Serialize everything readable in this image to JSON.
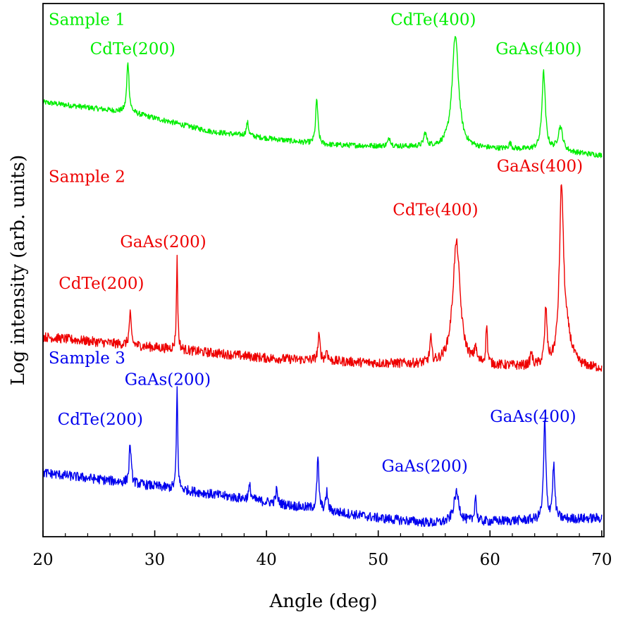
{
  "chart_data": {
    "type": "line",
    "title": "",
    "xlabel": "Angle (deg)",
    "ylabel": "Log intensity (arb. units)",
    "xlim": [
      20,
      70.2
    ],
    "ylim": [
      0,
      10
    ],
    "y_ticks_labeled": false,
    "x_ticks": [
      20,
      30,
      40,
      50,
      60,
      70
    ],
    "x_tick_labels": [
      "20",
      "30",
      "40",
      "50",
      "60",
      "70"
    ],
    "grid": false,
    "legend": "none",
    "series": [
      {
        "name": "Sample 1",
        "color": "#00ee00",
        "baseline": [
          [
            20,
            8.15
          ],
          [
            28,
            7.95
          ],
          [
            35,
            7.6
          ],
          [
            45,
            7.35
          ],
          [
            55,
            7.3
          ],
          [
            65,
            7.25
          ],
          [
            70,
            7.15
          ]
        ],
        "noise": 0.05,
        "peaks": [
          {
            "x": 27.6,
            "h": 0.95,
            "w": 0.12
          },
          {
            "x": 38.3,
            "h": 0.25,
            "w": 0.12
          },
          {
            "x": 44.5,
            "h": 0.85,
            "w": 0.12
          },
          {
            "x": 51.0,
            "h": 0.15,
            "w": 0.15
          },
          {
            "x": 54.2,
            "h": 0.25,
            "w": 0.15
          },
          {
            "x": 56.9,
            "h": 2.1,
            "w": 0.35
          },
          {
            "x": 61.8,
            "h": 0.1,
            "w": 0.15
          },
          {
            "x": 64.8,
            "h": 1.45,
            "w": 0.18
          },
          {
            "x": 66.3,
            "h": 0.45,
            "w": 0.25
          }
        ],
        "annotations": [
          {
            "text": "Sample 1",
            "x": 20.5,
            "y": 9.6
          },
          {
            "text": "CdTe(200)",
            "x": 24.2,
            "y": 9.05
          },
          {
            "text": "CdTe(400)",
            "x": 51.1,
            "y": 9.6
          },
          {
            "text": "GaAs(400)",
            "x": 60.5,
            "y": 9.05
          }
        ]
      },
      {
        "name": "Sample 2",
        "color": "#ee0000",
        "baseline": [
          [
            20,
            3.75
          ],
          [
            30,
            3.55
          ],
          [
            40,
            3.35
          ],
          [
            50,
            3.25
          ],
          [
            60,
            3.2
          ],
          [
            70,
            3.15
          ]
        ],
        "noise": 0.09,
        "peaks": [
          {
            "x": 27.8,
            "h": 0.6,
            "w": 0.1
          },
          {
            "x": 32.0,
            "h": 1.7,
            "w": 0.07
          },
          {
            "x": 44.7,
            "h": 0.45,
            "w": 0.12
          },
          {
            "x": 45.4,
            "h": 0.2,
            "w": 0.1
          },
          {
            "x": 54.7,
            "h": 0.45,
            "w": 0.1
          },
          {
            "x": 57.0,
            "h": 2.3,
            "w": 0.4
          },
          {
            "x": 58.7,
            "h": 0.3,
            "w": 0.1
          },
          {
            "x": 59.7,
            "h": 0.75,
            "w": 0.08
          },
          {
            "x": 63.7,
            "h": 0.25,
            "w": 0.1
          },
          {
            "x": 65.0,
            "h": 1.05,
            "w": 0.12
          },
          {
            "x": 66.4,
            "h": 3.2,
            "w": 0.22
          },
          {
            "x": 66.9,
            "h": 0.5,
            "w": 0.5
          }
        ],
        "annotations": [
          {
            "text": "Sample 2",
            "x": 20.5,
            "y": 6.65
          },
          {
            "text": "GaAs(400)",
            "x": 60.6,
            "y": 6.85
          },
          {
            "text": "CdTe(400)",
            "x": 51.3,
            "y": 6.03
          },
          {
            "text": "GaAs(200)",
            "x": 26.9,
            "y": 5.43
          },
          {
            "text": "CdTe(200)",
            "x": 21.4,
            "y": 4.65
          }
        ]
      },
      {
        "name": "Sample 3",
        "color": "#0000ee",
        "baseline": [
          [
            20,
            1.2
          ],
          [
            30,
            0.95
          ],
          [
            40,
            0.65
          ],
          [
            50,
            0.35
          ],
          [
            55,
            0.25
          ],
          [
            62,
            0.3
          ],
          [
            70,
            0.35
          ]
        ],
        "noise": 0.09,
        "peaks": [
          {
            "x": 27.8,
            "h": 0.75,
            "w": 0.1
          },
          {
            "x": 32.0,
            "h": 1.9,
            "w": 0.07
          },
          {
            "x": 38.5,
            "h": 0.25,
            "w": 0.12
          },
          {
            "x": 40.9,
            "h": 0.25,
            "w": 0.1
          },
          {
            "x": 44.6,
            "h": 0.95,
            "w": 0.1
          },
          {
            "x": 45.4,
            "h": 0.35,
            "w": 0.1
          },
          {
            "x": 57.0,
            "h": 0.55,
            "w": 0.3
          },
          {
            "x": 58.7,
            "h": 0.5,
            "w": 0.09
          },
          {
            "x": 64.9,
            "h": 1.85,
            "w": 0.12
          },
          {
            "x": 65.7,
            "h": 1.0,
            "w": 0.12
          }
        ],
        "annotations": [
          {
            "text": "Sample 3",
            "x": 20.5,
            "y": 3.25
          },
          {
            "text": "GaAs(200)",
            "x": 27.3,
            "y": 2.85
          },
          {
            "text": "CdTe(200)",
            "x": 21.3,
            "y": 2.1
          },
          {
            "text": "GaAs(400)",
            "x": 60.0,
            "y": 2.15
          },
          {
            "text": "GaAs(200)",
            "x": 50.3,
            "y": 1.22
          }
        ]
      }
    ]
  }
}
